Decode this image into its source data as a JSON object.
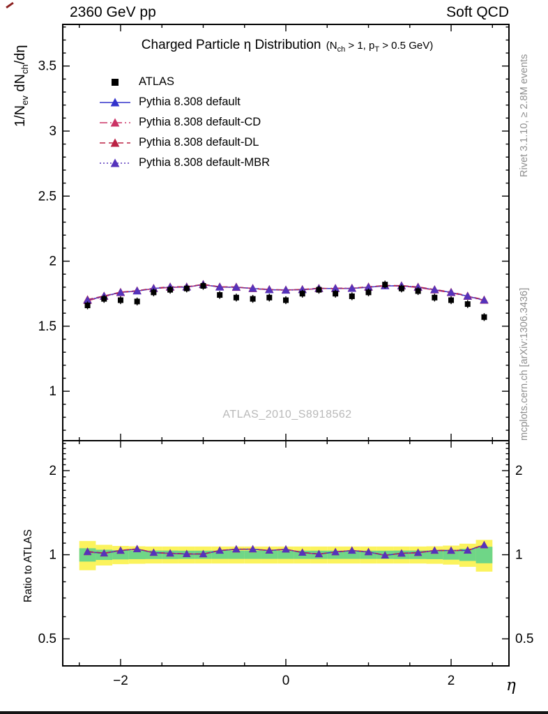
{
  "header": {
    "left": "2360 GeV pp",
    "right": "Soft QCD"
  },
  "title": {
    "main": "Charged Particle η Distribution",
    "cond_parts": [
      "(N",
      "ch",
      " > 1, p",
      "T",
      " > 0.5 GeV)"
    ]
  },
  "ylabel_parts": [
    "1/N",
    "ev",
    " dN",
    "ch",
    "/dη"
  ],
  "xlabel": "η",
  "ratio_ylabel": "Ratio to ATLAS",
  "watermark": "ATLAS_2010_S8918562",
  "side_notes": {
    "top": "Rivet 3.1.10, ≥ 2.8M events",
    "bottom": "mcplots.cern.ch [arXiv:1306.3436]"
  },
  "colors": {
    "frame": "#000000",
    "band_yellow": "#fbf35d",
    "band_green": "#6fd687",
    "watermark_gray": "#b9b9b9",
    "side_note_gray": "#8f8f8f"
  },
  "chart_data": {
    "type": "line",
    "title": "Charged Particle η Distribution (Nch > 1, pT > 0.5 GeV)",
    "xlabel": "η",
    "ylabel": "1/Nev dNch/dη",
    "xlim": [
      -2.7,
      2.7
    ],
    "ylim": [
      0.62,
      3.82
    ],
    "xticks": [
      -2,
      0,
      2
    ],
    "yticks": [
      1,
      1.5,
      2,
      2.5,
      3,
      3.5
    ],
    "legend_position": "top-left-inside",
    "grid": false,
    "x": [
      -2.4,
      -2.2,
      -2.0,
      -1.8,
      -1.6,
      -1.4,
      -1.2,
      -1.0,
      -0.8,
      -0.6,
      -0.4,
      -0.2,
      0.0,
      0.2,
      0.4,
      0.6,
      0.8,
      1.0,
      1.2,
      1.4,
      1.6,
      1.8,
      2.0,
      2.2,
      2.4
    ],
    "atlas_err": 0.03,
    "series": [
      {
        "name": "ATLAS",
        "marker": "square",
        "dash": "none",
        "color": "#000000",
        "values": [
          1.66,
          1.71,
          1.7,
          1.69,
          1.76,
          1.78,
          1.79,
          1.81,
          1.74,
          1.72,
          1.71,
          1.72,
          1.7,
          1.75,
          1.78,
          1.75,
          1.73,
          1.76,
          1.82,
          1.79,
          1.77,
          1.72,
          1.7,
          1.67,
          1.57
        ]
      },
      {
        "name": "Pythia 8.308 default",
        "marker": "triangle",
        "dash": "solid",
        "color": "#3333cc",
        "values": [
          1.7,
          1.73,
          1.76,
          1.77,
          1.79,
          1.8,
          1.8,
          1.82,
          1.8,
          1.8,
          1.79,
          1.78,
          1.78,
          1.78,
          1.79,
          1.79,
          1.79,
          1.8,
          1.81,
          1.81,
          1.8,
          1.78,
          1.76,
          1.73,
          1.7
        ]
      },
      {
        "name": "Pythia 8.308 default-CD",
        "marker": "triangle",
        "dash": "dashdot",
        "color": "#cb3365",
        "values": [
          1.696,
          1.728,
          1.757,
          1.772,
          1.788,
          1.798,
          1.802,
          1.818,
          1.802,
          1.797,
          1.792,
          1.783,
          1.778,
          1.782,
          1.788,
          1.792,
          1.793,
          1.798,
          1.812,
          1.808,
          1.797,
          1.778,
          1.757,
          1.728,
          1.698
        ]
      },
      {
        "name": "Pythia 8.308 default-DL",
        "marker": "triangle",
        "dash": "dash",
        "color": "#bb2244",
        "values": [
          1.705,
          1.733,
          1.762,
          1.773,
          1.792,
          1.803,
          1.803,
          1.822,
          1.803,
          1.802,
          1.788,
          1.782,
          1.777,
          1.783,
          1.792,
          1.788,
          1.792,
          1.803,
          1.813,
          1.812,
          1.802,
          1.782,
          1.762,
          1.733,
          1.703
        ]
      },
      {
        "name": "Pythia 8.308 default-MBR",
        "marker": "triangle",
        "dash": "dot",
        "color": "#5533bb",
        "values": [
          1.7,
          1.731,
          1.759,
          1.771,
          1.79,
          1.801,
          1.801,
          1.82,
          1.801,
          1.799,
          1.79,
          1.781,
          1.776,
          1.781,
          1.79,
          1.79,
          1.791,
          1.8,
          1.811,
          1.81,
          1.799,
          1.78,
          1.759,
          1.73,
          1.7
        ]
      }
    ],
    "ratio": {
      "ylabel": "Ratio to ATLAS",
      "reference": "ATLAS",
      "scale": "log",
      "ylim": [
        0.4,
        2.56
      ],
      "yticks": [
        0.5,
        1,
        2
      ],
      "yellow_band_halfwidth": [
        0.12,
        0.085,
        0.075,
        0.072,
        0.07,
        0.07,
        0.07,
        0.07,
        0.07,
        0.07,
        0.07,
        0.07,
        0.07,
        0.07,
        0.07,
        0.07,
        0.07,
        0.07,
        0.07,
        0.07,
        0.07,
        0.072,
        0.078,
        0.095,
        0.13
      ],
      "green_band_halfwidth": [
        0.055,
        0.042,
        0.038,
        0.036,
        0.035,
        0.035,
        0.034,
        0.034,
        0.034,
        0.034,
        0.034,
        0.034,
        0.034,
        0.034,
        0.034,
        0.034,
        0.034,
        0.034,
        0.034,
        0.035,
        0.035,
        0.036,
        0.04,
        0.05,
        0.068
      ]
    }
  }
}
